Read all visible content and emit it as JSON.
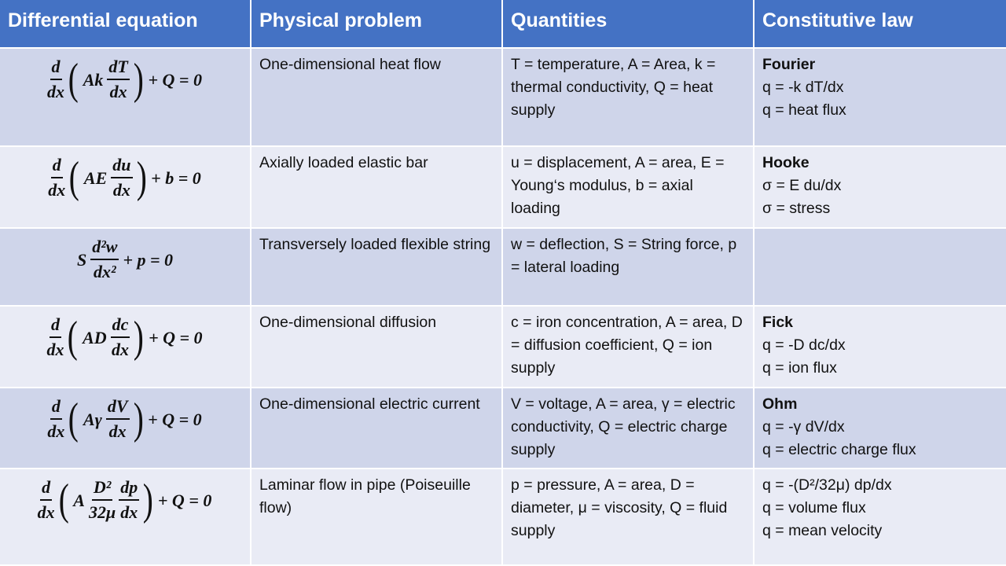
{
  "header": [
    "Differential equation",
    "Physical problem",
    "Quantities",
    "Constitutive law"
  ],
  "rows": [
    {
      "equation": [
        {
          "num": "d",
          "den": "dx"
        },
        "(",
        "Ak",
        {
          "num": "dT",
          "den": "dx"
        },
        ")",
        "+ Q = 0"
      ],
      "problem": "One-dimensional heat flow",
      "quantities": "T = temperature, A = Area, k = thermal conductivity, Q = heat supply",
      "law": {
        "title": "Fourier",
        "lines": [
          "q = -k dT/dx",
          "q = heat flux"
        ]
      }
    },
    {
      "equation": [
        {
          "num": "d",
          "den": "dx"
        },
        "(",
        "AE",
        {
          "num": "du",
          "den": "dx"
        },
        ")",
        "+ b = 0"
      ],
      "problem": "Axially loaded elastic bar",
      "quantities": "u = displacement, A = area, E = Young‘s modulus, b = axial loading",
      "law": {
        "title": "Hooke",
        "lines": [
          "σ = E du/dx",
          "σ = stress"
        ]
      }
    },
    {
      "equation": [
        "S",
        {
          "num": "d²w",
          "den": "dx²"
        },
        "+ p = 0"
      ],
      "problem": "Transversely loaded flexible string",
      "quantities": "w = deflection, S = String force, p = lateral loading"
    },
    {
      "equation": [
        {
          "num": "d",
          "den": "dx"
        },
        "(",
        "AD",
        {
          "num": "dc",
          "den": "dx"
        },
        ")",
        "+ Q = 0"
      ],
      "problem": "One-dimensional diffusion",
      "quantities": "c = iron concentration, A = area, D = diffusion coefficient, Q = ion supply",
      "law": {
        "title": "Fick",
        "lines": [
          "q = -D dc/dx",
          "q = ion flux"
        ]
      }
    },
    {
      "equation": [
        {
          "num": "d",
          "den": "dx"
        },
        "(",
        "Aγ",
        {
          "num": "dV",
          "den": "dx"
        },
        ")",
        "+ Q = 0"
      ],
      "problem": "One-dimensional electric current",
      "quantities": "V = voltage, A = area, γ = electric conductivity, Q = electric charge supply",
      "law": {
        "title": "Ohm",
        "lines": [
          "q = -γ dV/dx",
          "q = electric charge flux"
        ]
      }
    },
    {
      "equation": [
        {
          "num": "d",
          "den": "dx"
        },
        "(",
        "A",
        {
          "num": "D²",
          "den": "32μ"
        },
        {
          "num": "dp",
          "den": "dx"
        },
        ")",
        "+ Q = 0"
      ],
      "problem": "Laminar flow in pipe (Poiseuille flow)",
      "quantities": "p = pressure, A = area, D = diameter, μ = viscosity, Q = fluid supply",
      "law": {
        "lines": [
          "q = -(D²/32μ) dp/dx",
          "q = volume flux",
          "q = mean velocity"
        ]
      }
    }
  ]
}
